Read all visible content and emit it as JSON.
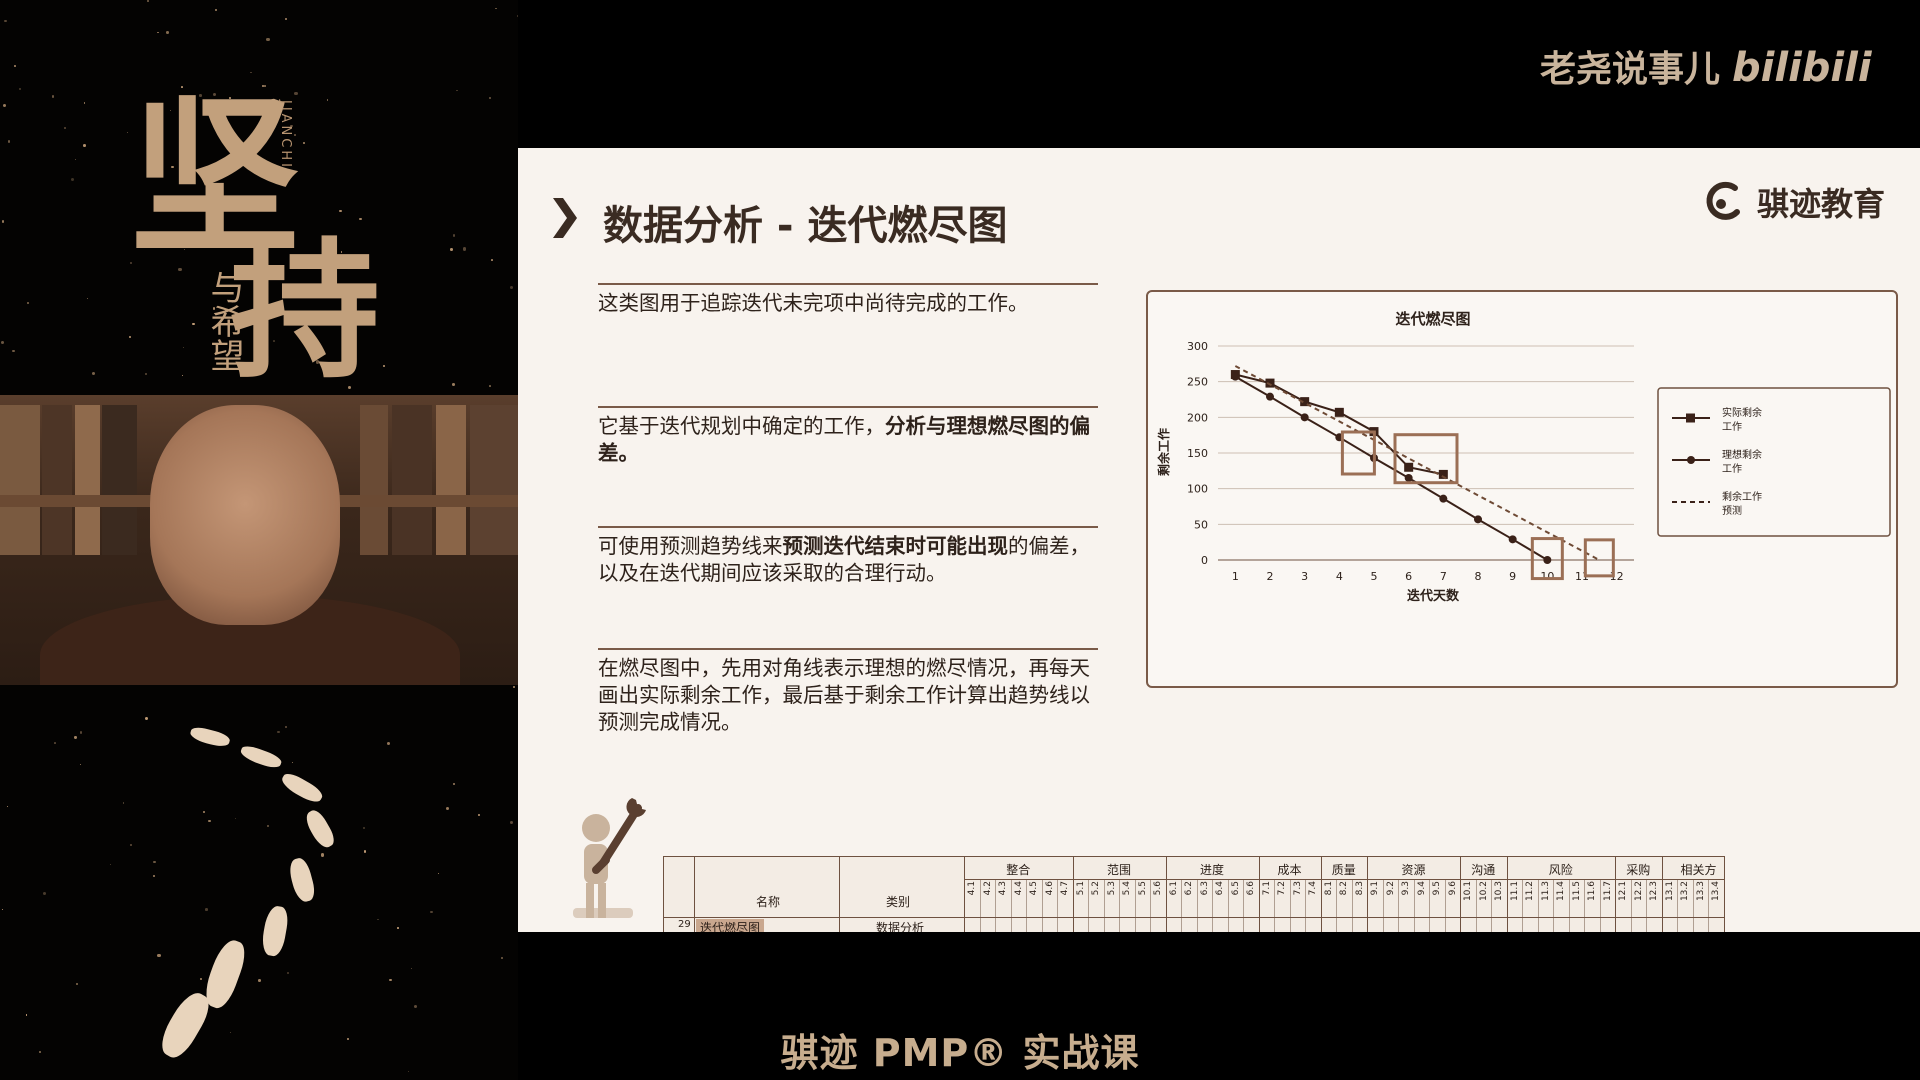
{
  "watermark": {
    "channel": "老尧说事儿",
    "platform": "bilibili"
  },
  "poster": {
    "main_char_1": "坚",
    "main_char_2": "持",
    "vertical_text": "JIANCHI",
    "sub_text": "与希望"
  },
  "slide": {
    "title": "数据分析 - 迭代燃尽图",
    "brand": "骐迹教育",
    "paragraphs": [
      {
        "text": "这类图用于追踪迭代未完项中尚待完成的工作。"
      },
      {
        "text_before": "它基于迭代规划中确定的工作，",
        "bold": "分析与理想燃尽图的偏差。",
        "text_after": ""
      },
      {
        "text_before": "可使用预测趋势线来",
        "bold": "预测迭代结束时可能出现",
        "text_after": "的偏差，以及在迭代期间应该采取的合理行动。"
      },
      {
        "text": "在燃尽图中，先用对角线表示理想的燃尽情况，再每天画出实际剩余工作，最后基于剩余工作计算出趋势线以预测完成情况。"
      }
    ]
  },
  "chart_data": {
    "type": "line",
    "title": "迭代燃尽图",
    "xlabel": "迭代天数",
    "ylabel": "剩余工作",
    "x": [
      1,
      2,
      3,
      4,
      5,
      6,
      7,
      8,
      9,
      10,
      11,
      12
    ],
    "ylim": [
      0,
      300
    ],
    "yticks": [
      0,
      50,
      100,
      150,
      200,
      250,
      300
    ],
    "grid": true,
    "legend_position": "right",
    "series": [
      {
        "name": "实际剩余工作",
        "marker": "square",
        "x": [
          1,
          2,
          3,
          4,
          5,
          6,
          7
        ],
        "values": [
          260,
          248,
          222,
          207,
          180,
          130,
          120
        ]
      },
      {
        "name": "理想剩余工作",
        "marker": "circle",
        "x": [
          1,
          2,
          3,
          4,
          5,
          6,
          7,
          8,
          9,
          10
        ],
        "values": [
          257,
          229,
          200,
          172,
          143,
          115,
          86,
          57,
          29,
          0
        ]
      },
      {
        "name": "剩余工作预测",
        "style": "dashed",
        "x": [
          1,
          11.5
        ],
        "values": [
          272,
          0
        ]
      }
    ]
  },
  "table": {
    "headers": {
      "name": "名称",
      "category": "类别"
    },
    "row": {
      "index": "29",
      "name": "迭代燃尽图",
      "category": "数据分析"
    },
    "groups": [
      "整合",
      "范围",
      "进度",
      "成本",
      "质量",
      "资源",
      "沟通",
      "风险",
      "采购",
      "相关方"
    ],
    "codes": [
      "4.1",
      "4.2",
      "4.3",
      "4.4",
      "4.5",
      "4.6",
      "4.7",
      "5.1",
      "5.2",
      "5.3",
      "5.4",
      "5.5",
      "5.6",
      "6.1",
      "6.2",
      "6.3",
      "6.4",
      "6.5",
      "6.6",
      "7.1",
      "7.2",
      "7.3",
      "7.4",
      "8.1",
      "8.2",
      "8.3",
      "9.1",
      "9.2",
      "9.3",
      "9.4",
      "9.5",
      "9.6",
      "10.1",
      "10.2",
      "10.3",
      "11.1",
      "11.2",
      "11.3",
      "11.4",
      "11.5",
      "11.6",
      "11.7",
      "12.1",
      "12.2",
      "12.3",
      "13.1",
      "13.2",
      "13.3",
      "13.4"
    ]
  },
  "footer": {
    "subtitle": "骐迹 PMP® 实战课"
  },
  "colors": {
    "slide_bg": "#f8f3ee",
    "accent": "#3a2b22",
    "highlight_box": "#9b6f55",
    "line": "#3a2118"
  }
}
